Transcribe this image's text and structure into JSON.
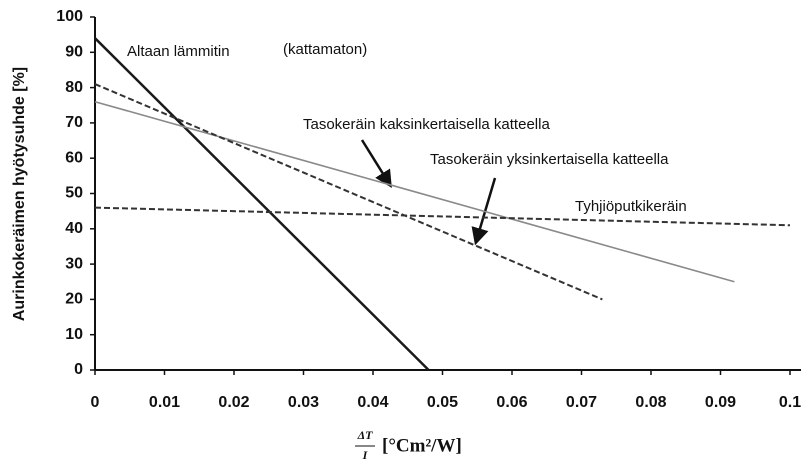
{
  "chart_data": {
    "type": "line",
    "y_label": "Aurinkokeräimen hyötysuhde [%]",
    "x_label": {
      "numerator": "ΔT",
      "denominator": "I",
      "unit": "[°Cm²/W]"
    },
    "xlim": [
      0,
      0.1
    ],
    "xticks": [
      0,
      0.01,
      0.02,
      0.03,
      0.04,
      0.05,
      0.06,
      0.07,
      0.08,
      0.09,
      0.1
    ],
    "ylim": [
      0,
      100
    ],
    "yticks": [
      0,
      10,
      20,
      30,
      40,
      50,
      60,
      70,
      80,
      90,
      100
    ],
    "series": [
      {
        "name": "Altaan lämmitin",
        "color": "#1a1a1a",
        "x": [
          0,
          0.048
        ],
        "values": [
          94,
          0
        ]
      },
      {
        "name": "Tasokeräin kaksinkertaisella katteella",
        "color": "#8a8a8a",
        "x": [
          0,
          0.092
        ],
        "values": [
          76,
          25
        ]
      },
      {
        "name": "Tasokeräin yksinkertaisella katteella",
        "color": "#333333",
        "dashed": true,
        "x": [
          0,
          0.073
        ],
        "values": [
          81,
          20
        ]
      },
      {
        "name": "Tyhjiöputkikeräin",
        "color": "#333333",
        "dashed": true,
        "x": [
          0,
          0.1
        ],
        "values": [
          46,
          41
        ]
      }
    ],
    "annotations": [
      "(kattamaton)"
    ]
  }
}
